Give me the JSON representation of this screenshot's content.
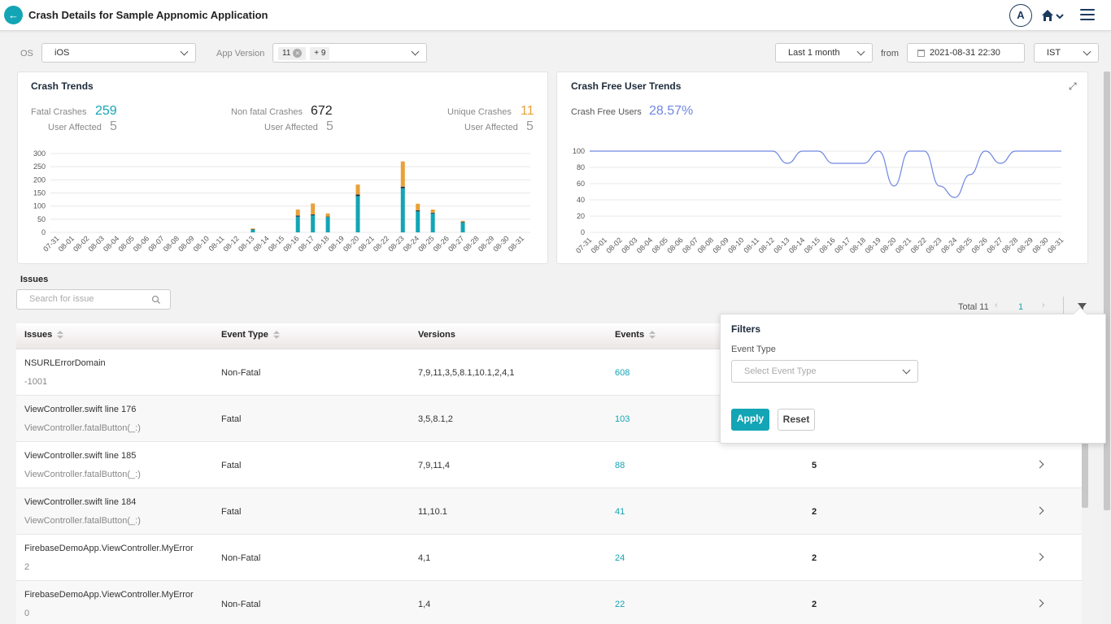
{
  "header": {
    "title": "Crash Details for Sample Appnomic Application",
    "avatar_initial": "A"
  },
  "filters_bar": {
    "os_label": "OS",
    "os_value": "iOS",
    "app_version_label": "App Version",
    "app_version_chip": "11",
    "app_version_more": "+ 9",
    "range_value": "Last 1 month",
    "from_label": "from",
    "from_date": "2021-08-31 22:30",
    "timezone": "IST"
  },
  "crash_trends": {
    "title": "Crash Trends",
    "fatal_label": "Fatal Crashes",
    "fatal_value": "259",
    "nonfatal_label": "Non fatal Crashes",
    "nonfatal_value": "672",
    "unique_label": "Unique Crashes",
    "unique_value": "11",
    "user_affected_label": "User Affected",
    "fatal_users": "5",
    "nonfatal_users": "5",
    "unique_users": "5"
  },
  "crash_free": {
    "title": "Crash Free User Trends",
    "label": "Crash Free Users",
    "value": "28.57%"
  },
  "issues": {
    "title": "Issues",
    "search_placeholder": "Search for issue",
    "total_label": "Total 11",
    "page": "1",
    "columns": [
      "Issues",
      "Event Type",
      "Versions",
      "Events"
    ],
    "rows": [
      {
        "name": "NSURLErrorDomain",
        "sub": "-1001",
        "type": "Non-Fatal",
        "versions": "7,9,11,3,5,8.1,10.1,2,4,1",
        "events": "608",
        "users": ""
      },
      {
        "name": "ViewController.swift line 176",
        "sub": "ViewController.fatalButton(_:)",
        "type": "Fatal",
        "versions": "3,5,8.1,2",
        "events": "103",
        "users": ""
      },
      {
        "name": "ViewController.swift line 185",
        "sub": "ViewController.fatalButton(_:)",
        "type": "Fatal",
        "versions": "7,9,11,4",
        "events": "88",
        "users": "5"
      },
      {
        "name": "ViewController.swift line 184",
        "sub": "ViewController.fatalButton(_:)",
        "type": "Fatal",
        "versions": "11,10.1",
        "events": "41",
        "users": "2"
      },
      {
        "name": "FirebaseDemoApp.ViewController.MyError",
        "sub": "2",
        "type": "Non-Fatal",
        "versions": "4,1",
        "events": "24",
        "users": "2"
      },
      {
        "name": "FirebaseDemoApp.ViewController.MyError",
        "sub": "0",
        "type": "Non-Fatal",
        "versions": "1,4",
        "events": "22",
        "users": "2"
      }
    ]
  },
  "filter_panel": {
    "title": "Filters",
    "event_type_label": "Event Type",
    "event_type_placeholder": "Select Event Type",
    "apply": "Apply",
    "reset": "Reset"
  },
  "colors": {
    "accent": "#13a5b5",
    "fatal_bar": "#13a5b5",
    "unique_bar": "#e8a13a",
    "line": "#6f86e0"
  },
  "chart_data": [
    {
      "type": "bar",
      "title": "Crash Trends",
      "categories": [
        "07-31",
        "08-01",
        "08-02",
        "08-03",
        "08-04",
        "08-05",
        "08-06",
        "08-07",
        "08-08",
        "08-09",
        "08-10",
        "08-11",
        "08-12",
        "08-13",
        "08-14",
        "08-15",
        "08-16",
        "08-17",
        "08-18",
        "08-19",
        "08-20",
        "08-21",
        "08-22",
        "08-23",
        "08-24",
        "08-25",
        "08-26",
        "08-27",
        "08-28",
        "08-29",
        "08-30",
        "08-31"
      ],
      "series": [
        {
          "values": [
            0,
            0,
            0,
            0,
            0,
            0,
            0,
            0,
            0,
            0,
            0,
            0,
            0,
            10,
            0,
            0,
            60,
            65,
            58,
            0,
            138,
            0,
            0,
            168,
            80,
            72,
            0,
            38,
            0,
            0,
            0,
            0
          ]
        },
        {
          "values": [
            0,
            0,
            0,
            0,
            0,
            0,
            0,
            0,
            0,
            0,
            0,
            0,
            0,
            2,
            0,
            0,
            4,
            3,
            2,
            0,
            6,
            0,
            0,
            6,
            4,
            3,
            0,
            2,
            0,
            0,
            0,
            0
          ]
        },
        {
          "values": [
            0,
            0,
            0,
            0,
            0,
            0,
            0,
            0,
            0,
            0,
            0,
            0,
            0,
            3,
            0,
            0,
            23,
            42,
            12,
            0,
            38,
            0,
            0,
            96,
            25,
            12,
            0,
            4,
            0,
            0,
            0,
            0
          ]
        }
      ],
      "yticks": [
        0,
        50,
        100,
        150,
        200,
        250,
        300
      ],
      "ylim": [
        0,
        300
      ],
      "stacked": true
    },
    {
      "type": "line",
      "title": "Crash Free User Trends",
      "categories": [
        "07-31",
        "08-01",
        "08-02",
        "08-03",
        "08-04",
        "08-05",
        "08-06",
        "08-07",
        "08-08",
        "08-09",
        "08-10",
        "08-11",
        "08-12",
        "08-13",
        "08-14",
        "08-15",
        "08-16",
        "08-17",
        "08-18",
        "08-19",
        "08-20",
        "08-21",
        "08-22",
        "08-23",
        "08-24",
        "08-25",
        "08-26",
        "08-27",
        "08-28",
        "08-29",
        "08-30",
        "08-31"
      ],
      "series": [
        {
          "values": [
            100,
            100,
            100,
            100,
            100,
            100,
            100,
            100,
            100,
            100,
            100,
            100,
            100,
            85,
            100,
            100,
            85,
            85,
            85,
            100,
            57,
            100,
            100,
            57,
            43,
            71,
            100,
            85,
            100,
            100,
            100,
            100
          ]
        }
      ],
      "yticks": [
        0,
        20,
        40,
        60,
        80,
        100
      ],
      "ylim": [
        0,
        100
      ]
    }
  ]
}
